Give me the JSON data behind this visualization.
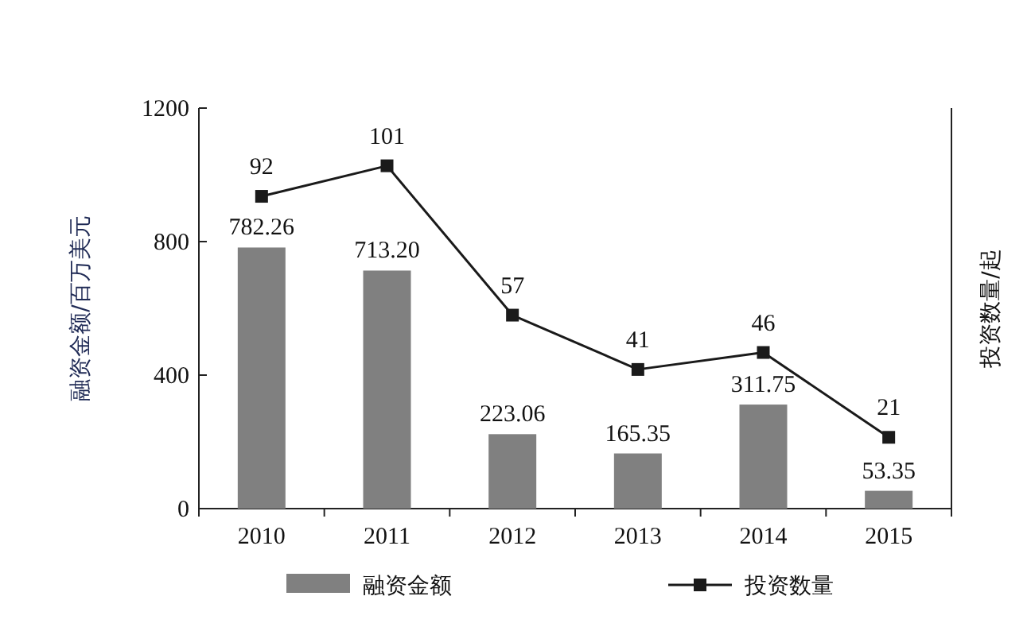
{
  "chart_data": {
    "type": "bar",
    "categories": [
      "2010",
      "2011",
      "2012",
      "2013",
      "2014",
      "2015"
    ],
    "ylabel": "融资金额/百万美元",
    "y2label": "投资数量/起",
    "ylim": [
      0,
      1200
    ],
    "yticks": [
      0,
      400,
      800,
      1200
    ],
    "y2lim": [
      0,
      118
    ],
    "series": [
      {
        "name": "融资金额",
        "color": "#808080",
        "values": [
          782.26,
          713.2,
          223.06,
          165.35,
          311.75,
          53.35
        ],
        "value_labels": [
          "782.26",
          "713.20",
          "223.06",
          "165.35",
          "311.75",
          "53.35"
        ]
      },
      {
        "name": "投资数量",
        "type": "line",
        "axis": "y2",
        "color": "#1a1a1a",
        "marker": "square",
        "values": [
          92,
          101,
          57,
          41,
          46,
          21
        ]
      }
    ],
    "data_labels": true,
    "legend": "bottom",
    "grid": false
  }
}
